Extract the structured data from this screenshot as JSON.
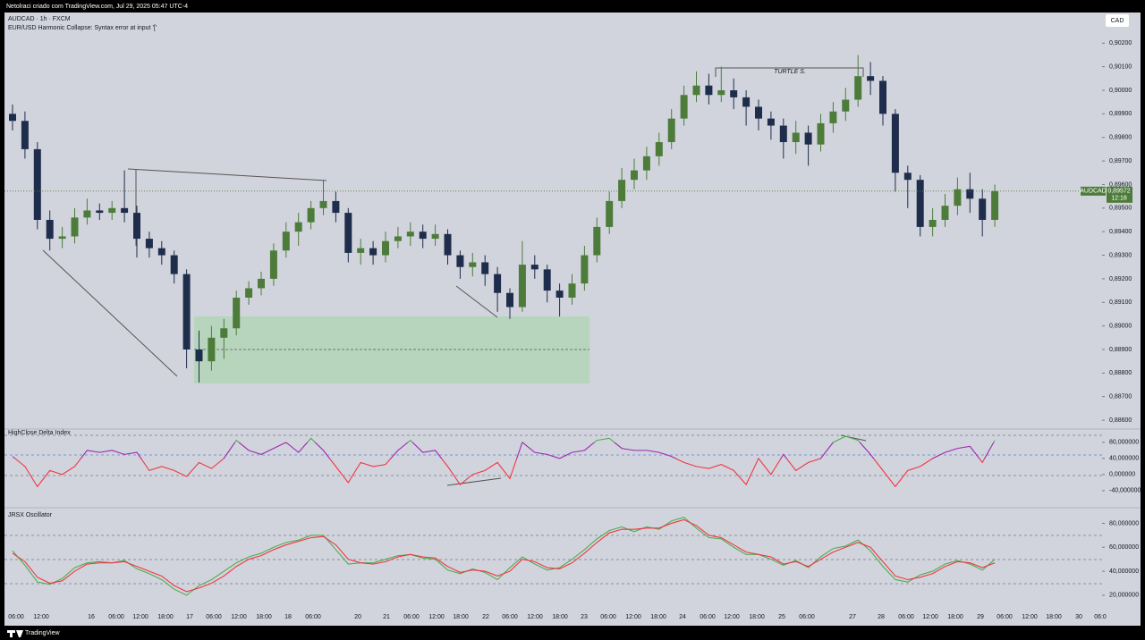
{
  "header": {
    "text": "Netolraci criado com TradingView.com, Jul 29, 2025 05:47 UTC-4",
    "footer": "TradingView"
  },
  "chart_data": [
    {
      "type": "candlestick",
      "title": "AUDCAD · 1h · FXCM",
      "subtitle": "EUR/USD Harmonic Collapse: Syntax error at input '['",
      "currency": "CAD",
      "annotation": "TURTLE S.",
      "up_color": "#4d7c3a",
      "down_color": "#1f2d4d",
      "ylim": [
        0.8857,
        0.9033
      ],
      "yticks": [
        {
          "value": 0.886,
          "label": "0,88600"
        },
        {
          "value": 0.887,
          "label": "0,88700"
        },
        {
          "value": 0.888,
          "label": "0,88800"
        },
        {
          "value": 0.889,
          "label": "0,88900"
        },
        {
          "value": 0.89,
          "label": "0,89000"
        },
        {
          "value": 0.891,
          "label": "0,89100"
        },
        {
          "value": 0.892,
          "label": "0,89200"
        },
        {
          "value": 0.893,
          "label": "0,89300"
        },
        {
          "value": 0.894,
          "label": "0,89400"
        },
        {
          "value": 0.895,
          "label": "0,89500"
        },
        {
          "value": 0.896,
          "label": "0,89600"
        },
        {
          "value": 0.897,
          "label": "0,89700"
        },
        {
          "value": 0.898,
          "label": "0,89800"
        },
        {
          "value": 0.899,
          "label": "0,89900"
        },
        {
          "value": 0.9,
          "label": "0,90000"
        },
        {
          "value": 0.901,
          "label": "0,90100"
        },
        {
          "value": 0.902,
          "label": "0,90200"
        }
      ],
      "last_price": {
        "value": 0.89572,
        "label": "0,89572"
      },
      "price_tag_symbol": "AUDCAD",
      "countdown": "12:18",
      "x_labels": [
        "06:00",
        "12:00",
        "16",
        "06:00",
        "12:00",
        "18:00",
        "17",
        "06:00",
        "12:00",
        "18:00",
        "18",
        "06:00",
        "20",
        "21",
        "06:00",
        "12:00",
        "18:00",
        "22",
        "06:00",
        "12:00",
        "18:00",
        "23",
        "06:00",
        "12:00",
        "18:00",
        "24",
        "06:00",
        "12:00",
        "18:00",
        "25",
        "06:00",
        "27",
        "28",
        "06:00",
        "12:00",
        "18:00",
        "29",
        "06:00",
        "12:00",
        "18:00",
        "30",
        "06:0"
      ],
      "candles": [
        [
          0.899,
          0.8994,
          0.8983,
          0.8987
        ],
        [
          0.8987,
          0.8991,
          0.8971,
          0.8975
        ],
        [
          0.8975,
          0.8978,
          0.8941,
          0.8945
        ],
        [
          0.8945,
          0.8949,
          0.8932,
          0.8937
        ],
        [
          0.8937,
          0.8942,
          0.8933,
          0.8938
        ],
        [
          0.8938,
          0.895,
          0.8935,
          0.8946
        ],
        [
          0.8946,
          0.8954,
          0.8943,
          0.8949
        ],
        [
          0.8949,
          0.8952,
          0.8945,
          0.8948
        ],
        [
          0.8948,
          0.8953,
          0.8945,
          0.895
        ],
        [
          0.895,
          0.8966,
          0.8944,
          0.8948
        ],
        [
          0.8948,
          0.8951,
          0.8929,
          0.8937
        ],
        [
          0.8937,
          0.894,
          0.8929,
          0.8933
        ],
        [
          0.8933,
          0.8936,
          0.8926,
          0.893
        ],
        [
          0.893,
          0.8932,
          0.8918,
          0.8922
        ],
        [
          0.8922,
          0.8924,
          0.8882,
          0.889
        ],
        [
          0.889,
          0.8898,
          0.8876,
          0.8885
        ],
        [
          0.8885,
          0.89,
          0.8881,
          0.8895
        ],
        [
          0.8895,
          0.8903,
          0.8886,
          0.8899
        ],
        [
          0.8899,
          0.8915,
          0.8896,
          0.8912
        ],
        [
          0.8912,
          0.8919,
          0.8909,
          0.8916
        ],
        [
          0.8916,
          0.8923,
          0.8913,
          0.892
        ],
        [
          0.892,
          0.8935,
          0.8917,
          0.8932
        ],
        [
          0.8932,
          0.8944,
          0.8929,
          0.894
        ],
        [
          0.894,
          0.8948,
          0.8934,
          0.8944
        ],
        [
          0.8944,
          0.8953,
          0.8941,
          0.895
        ],
        [
          0.895,
          0.8962,
          0.8947,
          0.8953
        ],
        [
          0.8953,
          0.8957,
          0.8944,
          0.8948
        ],
        [
          0.8948,
          0.895,
          0.8927,
          0.8931
        ],
        [
          0.8931,
          0.8937,
          0.8926,
          0.8933
        ],
        [
          0.8933,
          0.8936,
          0.8926,
          0.893
        ],
        [
          0.893,
          0.894,
          0.8927,
          0.8936
        ],
        [
          0.8936,
          0.8942,
          0.8933,
          0.8938
        ],
        [
          0.8938,
          0.8944,
          0.8934,
          0.894
        ],
        [
          0.894,
          0.8943,
          0.8933,
          0.8937
        ],
        [
          0.8937,
          0.8943,
          0.8934,
          0.8939
        ],
        [
          0.8939,
          0.8941,
          0.8926,
          0.893
        ],
        [
          0.893,
          0.8932,
          0.892,
          0.8925
        ],
        [
          0.8925,
          0.8931,
          0.8921,
          0.8927
        ],
        [
          0.8927,
          0.893,
          0.8917,
          0.8922
        ],
        [
          0.8922,
          0.8925,
          0.8906,
          0.8914
        ],
        [
          0.8914,
          0.8916,
          0.8903,
          0.8908
        ],
        [
          0.8908,
          0.8936,
          0.8906,
          0.8926
        ],
        [
          0.8926,
          0.893,
          0.892,
          0.8924
        ],
        [
          0.8924,
          0.8926,
          0.891,
          0.8915
        ],
        [
          0.8915,
          0.8918,
          0.8904,
          0.8912
        ],
        [
          0.8912,
          0.8922,
          0.8909,
          0.8918
        ],
        [
          0.8918,
          0.8934,
          0.8915,
          0.893
        ],
        [
          0.893,
          0.8946,
          0.8927,
          0.8942
        ],
        [
          0.8942,
          0.8957,
          0.8939,
          0.8953
        ],
        [
          0.8953,
          0.8967,
          0.895,
          0.8962
        ],
        [
          0.8962,
          0.8971,
          0.8958,
          0.8966
        ],
        [
          0.8966,
          0.8976,
          0.8962,
          0.8972
        ],
        [
          0.8972,
          0.8982,
          0.8968,
          0.8978
        ],
        [
          0.8978,
          0.8992,
          0.8975,
          0.8988
        ],
        [
          0.8988,
          0.9002,
          0.8985,
          0.8998
        ],
        [
          0.8998,
          0.9008,
          0.8995,
          0.9002
        ],
        [
          0.9002,
          0.9007,
          0.8994,
          0.8998
        ],
        [
          0.8998,
          0.901,
          0.8995,
          0.9
        ],
        [
          0.9,
          0.9005,
          0.8992,
          0.8997
        ],
        [
          0.8997,
          0.9,
          0.8985,
          0.8993
        ],
        [
          0.8993,
          0.8996,
          0.8983,
          0.8988
        ],
        [
          0.8988,
          0.8991,
          0.8979,
          0.8985
        ],
        [
          0.8985,
          0.8988,
          0.8971,
          0.8978
        ],
        [
          0.8978,
          0.8987,
          0.8973,
          0.8982
        ],
        [
          0.8982,
          0.8985,
          0.8968,
          0.8977
        ],
        [
          0.8977,
          0.899,
          0.8974,
          0.8986
        ],
        [
          0.8986,
          0.8995,
          0.8982,
          0.8991
        ],
        [
          0.8991,
          0.9001,
          0.8987,
          0.8996
        ],
        [
          0.8996,
          0.9015,
          0.8993,
          0.9006
        ],
        [
          0.9006,
          0.9012,
          0.8998,
          0.9004
        ],
        [
          0.9004,
          0.9006,
          0.8985,
          0.899
        ],
        [
          0.899,
          0.8992,
          0.8957,
          0.8965
        ],
        [
          0.8965,
          0.8968,
          0.895,
          0.8962
        ],
        [
          0.8962,
          0.8964,
          0.8938,
          0.8942
        ],
        [
          0.8942,
          0.895,
          0.8938,
          0.8945
        ],
        [
          0.8945,
          0.8956,
          0.8942,
          0.8951
        ],
        [
          0.8951,
          0.8963,
          0.8947,
          0.8958
        ],
        [
          0.8958,
          0.8965,
          0.8948,
          0.8954
        ],
        [
          0.8954,
          0.8958,
          0.8938,
          0.8945
        ],
        [
          0.8945,
          0.896,
          0.8942,
          0.89572
        ]
      ]
    },
    {
      "type": "line",
      "title": "HighClose Delta Index",
      "ylim": [
        -78,
        113
      ],
      "yticks": [
        {
          "value": 80,
          "label": "80,000000"
        },
        {
          "value": 40,
          "label": "40,000000"
        },
        {
          "value": 0,
          "label": "0,000000"
        },
        {
          "value": -40,
          "label": "-40,000000"
        }
      ],
      "series": [
        {
          "color": "#9c27b0",
          "color_high": "#4caf50",
          "color_low": "#f23645",
          "values": [
            45,
            20,
            -30,
            10,
            0,
            20,
            60,
            55,
            60,
            50,
            55,
            10,
            20,
            10,
            -5,
            30,
            15,
            40,
            85,
            60,
            50,
            65,
            80,
            55,
            90,
            60,
            20,
            -20,
            30,
            20,
            25,
            60,
            85,
            55,
            60,
            20,
            -25,
            0,
            10,
            30,
            -10,
            80,
            55,
            50,
            40,
            55,
            60,
            85,
            90,
            65,
            60,
            60,
            55,
            45,
            30,
            20,
            15,
            25,
            10,
            -25,
            40,
            0,
            50,
            10,
            30,
            40,
            80,
            95,
            85,
            50,
            10,
            -30,
            10,
            20,
            40,
            55,
            65,
            70,
            30,
            85
          ]
        }
      ]
    },
    {
      "type": "line",
      "title": "JRSX Oscillator",
      "ylim": [
        8,
        93
      ],
      "yticks": [
        {
          "value": 80,
          "label": "80,000000"
        },
        {
          "value": 60,
          "label": "60,000000"
        },
        {
          "value": 40,
          "label": "40,000000"
        },
        {
          "value": 20,
          "label": "20,000000"
        }
      ],
      "series": [
        {
          "color": "#4caf50",
          "values": [
            57,
            45,
            31,
            29,
            34,
            43,
            47,
            48,
            47,
            49,
            42,
            38,
            33,
            25,
            20,
            28,
            33,
            40,
            47,
            52,
            55,
            60,
            64,
            66,
            70,
            70,
            58,
            46,
            47,
            47,
            50,
            53,
            54,
            51,
            50,
            41,
            38,
            42,
            39,
            33,
            43,
            52,
            46,
            41,
            43,
            50,
            58,
            67,
            74,
            77,
            73,
            77,
            75,
            82,
            85,
            76,
            68,
            67,
            60,
            54,
            54,
            50,
            45,
            49,
            43,
            52,
            59,
            61,
            66,
            57,
            44,
            33,
            31,
            37,
            40,
            46,
            49,
            46,
            41,
            50
          ]
        },
        {
          "color": "#f23645",
          "values": [
            55,
            48,
            35,
            30,
            32,
            40,
            46,
            47,
            47,
            48,
            44,
            40,
            36,
            28,
            23,
            26,
            30,
            36,
            44,
            50,
            53,
            58,
            62,
            65,
            68,
            69,
            62,
            50,
            47,
            46,
            48,
            52,
            54,
            52,
            51,
            44,
            39,
            41,
            40,
            36,
            40,
            50,
            48,
            43,
            42,
            47,
            55,
            64,
            72,
            75,
            75,
            76,
            76,
            80,
            83,
            78,
            70,
            68,
            62,
            56,
            54,
            52,
            46,
            48,
            44,
            50,
            56,
            60,
            64,
            60,
            48,
            36,
            33,
            35,
            38,
            44,
            48,
            47,
            43,
            47
          ]
        }
      ]
    }
  ]
}
